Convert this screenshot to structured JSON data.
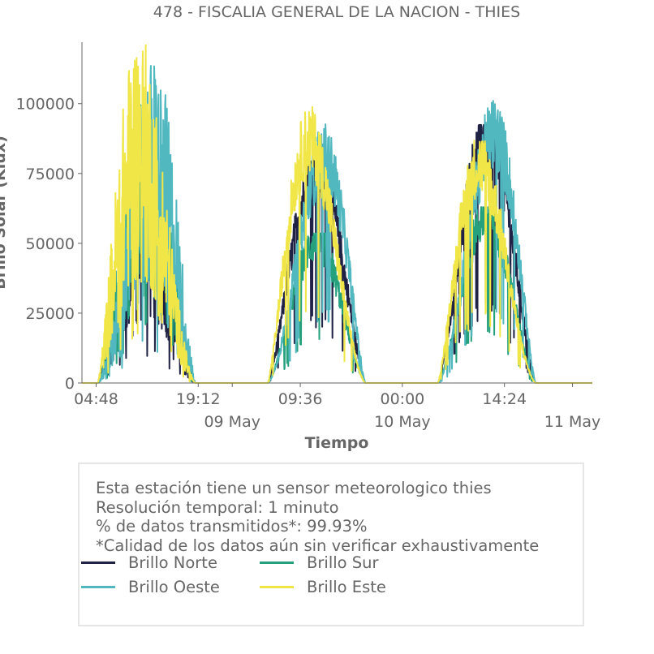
{
  "chart_data": {
    "type": "line",
    "title": "478 - FISCALIA GENERAL DE LA NACION - THIES",
    "xlabel": "Tiempo",
    "ylabel": "Brillo Solar (Klux)",
    "x_range_hours": [
      0,
      72
    ],
    "ylim": [
      0,
      122000
    ],
    "y_ticks": [
      0,
      25000,
      50000,
      75000,
      100000
    ],
    "y_tick_labels": [
      "0",
      "25000",
      "50000",
      "75000",
      "100000"
    ],
    "x_ticks": [
      {
        "hour": 2.0,
        "label": "04:48",
        "date": ""
      },
      {
        "hour": 16.4,
        "label": "19:12",
        "date": ""
      },
      {
        "hour": 21.2,
        "label": "",
        "date": "09 May"
      },
      {
        "hour": 30.8,
        "label": "09:36",
        "date": ""
      },
      {
        "hour": 45.2,
        "label": "00:00",
        "date": "10 May"
      },
      {
        "hour": 59.6,
        "label": "14:24",
        "date": ""
      },
      {
        "hour": 69.2,
        "label": "",
        "date": "11 May"
      }
    ],
    "series": [
      {
        "name": "Brillo Norte",
        "color": "#1f2145",
        "peaks": [
          62000,
          76000,
          88000
        ]
      },
      {
        "name": "Brillo Sur",
        "color": "#26a17e",
        "peaks": [
          86000,
          51000,
          60000
        ]
      },
      {
        "name": "Brillo Oeste",
        "color": "#52b8c0",
        "peaks": [
          112000,
          97000,
          107000
        ]
      },
      {
        "name": "Brillo Este",
        "color": "#f1e648",
        "peaks": [
          121000,
          104000,
          94000
        ]
      }
    ],
    "grid": false,
    "legend_placement": "bottom"
  },
  "info": {
    "line1": "Esta estación tiene un sensor meteorologico thies",
    "line2": "Resolución temporal: 1 minuto",
    "line3": "% de datos transmitidos*: 99.93%",
    "line4": "*Calidad de los datos aún sin verificar exhaustivamente"
  },
  "legend": {
    "norte": "Brillo Norte",
    "sur": "Brillo Sur",
    "oeste": "Brillo Oeste",
    "este": "Brillo Este"
  }
}
